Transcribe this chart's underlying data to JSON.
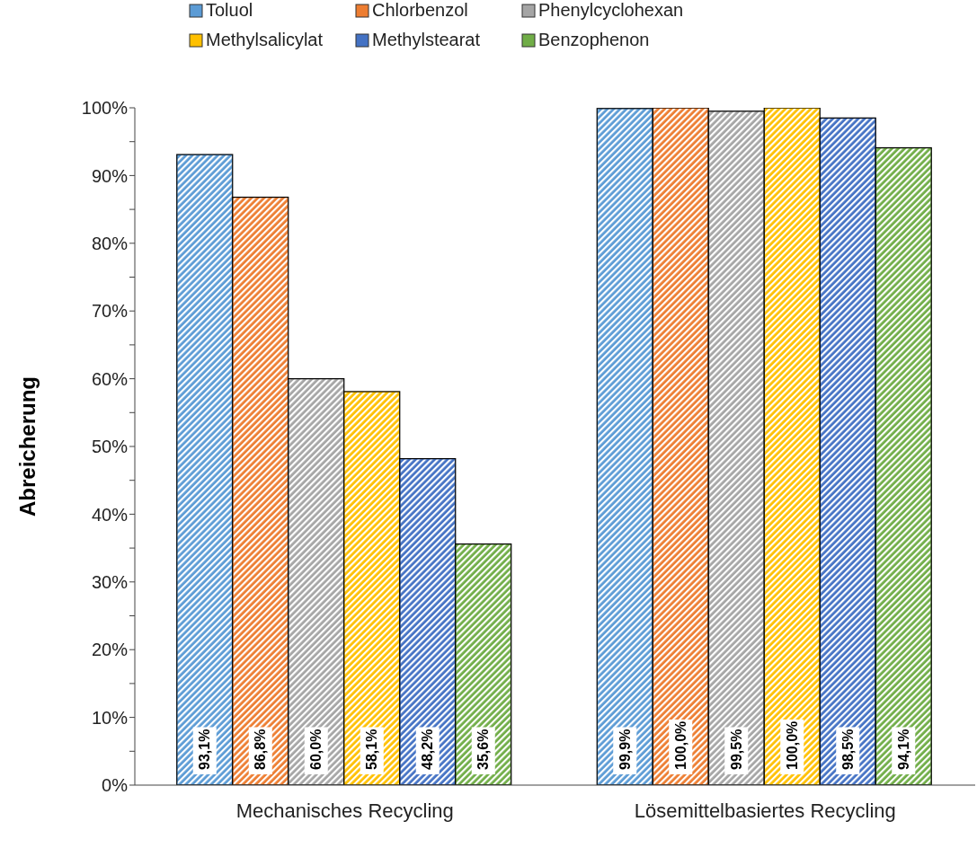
{
  "chart_data": {
    "type": "bar",
    "ylabel": "Abreicherung",
    "categories": [
      "Mechanisches Recycling",
      "Lösemittelbasiertes Recycling"
    ],
    "series": [
      {
        "name": "Toluol",
        "color": "#5b9bd5",
        "values": [
          93.1,
          99.9
        ],
        "value_labels": [
          "93,1%",
          "99,9%"
        ]
      },
      {
        "name": "Chlorbenzol",
        "color": "#ed7d31",
        "values": [
          86.8,
          100.0
        ],
        "value_labels": [
          "86,8%",
          "100,0%"
        ]
      },
      {
        "name": "Phenylcyclohexan",
        "color": "#a5a5a5",
        "values": [
          60.0,
          99.5
        ],
        "value_labels": [
          "60,0%",
          "99,5%"
        ]
      },
      {
        "name": "Methylsalicylat",
        "color": "#ffc000",
        "values": [
          58.1,
          100.0
        ],
        "value_labels": [
          "58,1%",
          "100,0%"
        ]
      },
      {
        "name": "Methylstearat",
        "color": "#4472c4",
        "values": [
          48.2,
          98.5
        ],
        "value_labels": [
          "48,2%",
          "98,5%"
        ]
      },
      {
        "name": "Benzophenon",
        "color": "#70ad47",
        "values": [
          35.6,
          94.1
        ],
        "value_labels": [
          "35,6%",
          "94,1%"
        ]
      }
    ],
    "ylim": [
      0,
      100
    ],
    "yticks": [
      {
        "value": 0,
        "label": "0%"
      },
      {
        "value": 5,
        "label": null
      },
      {
        "value": 10,
        "label": "10%"
      },
      {
        "value": 15,
        "label": null
      },
      {
        "value": 20,
        "label": "20%"
      },
      {
        "value": 25,
        "label": null
      },
      {
        "value": 30,
        "label": "30%"
      },
      {
        "value": 35,
        "label": null
      },
      {
        "value": 40,
        "label": "40%"
      },
      {
        "value": 45,
        "label": null
      },
      {
        "value": 50,
        "label": "50%"
      },
      {
        "value": 55,
        "label": null
      },
      {
        "value": 60,
        "label": "60%"
      },
      {
        "value": 65,
        "label": null
      },
      {
        "value": 70,
        "label": "70%"
      },
      {
        "value": 75,
        "label": null
      },
      {
        "value": 80,
        "label": "80%"
      },
      {
        "value": 85,
        "label": null
      },
      {
        "value": 90,
        "label": "90%"
      },
      {
        "value": 95,
        "label": null
      },
      {
        "value": 100,
        "label": "100%"
      }
    ],
    "grid": false,
    "legend": "top"
  }
}
